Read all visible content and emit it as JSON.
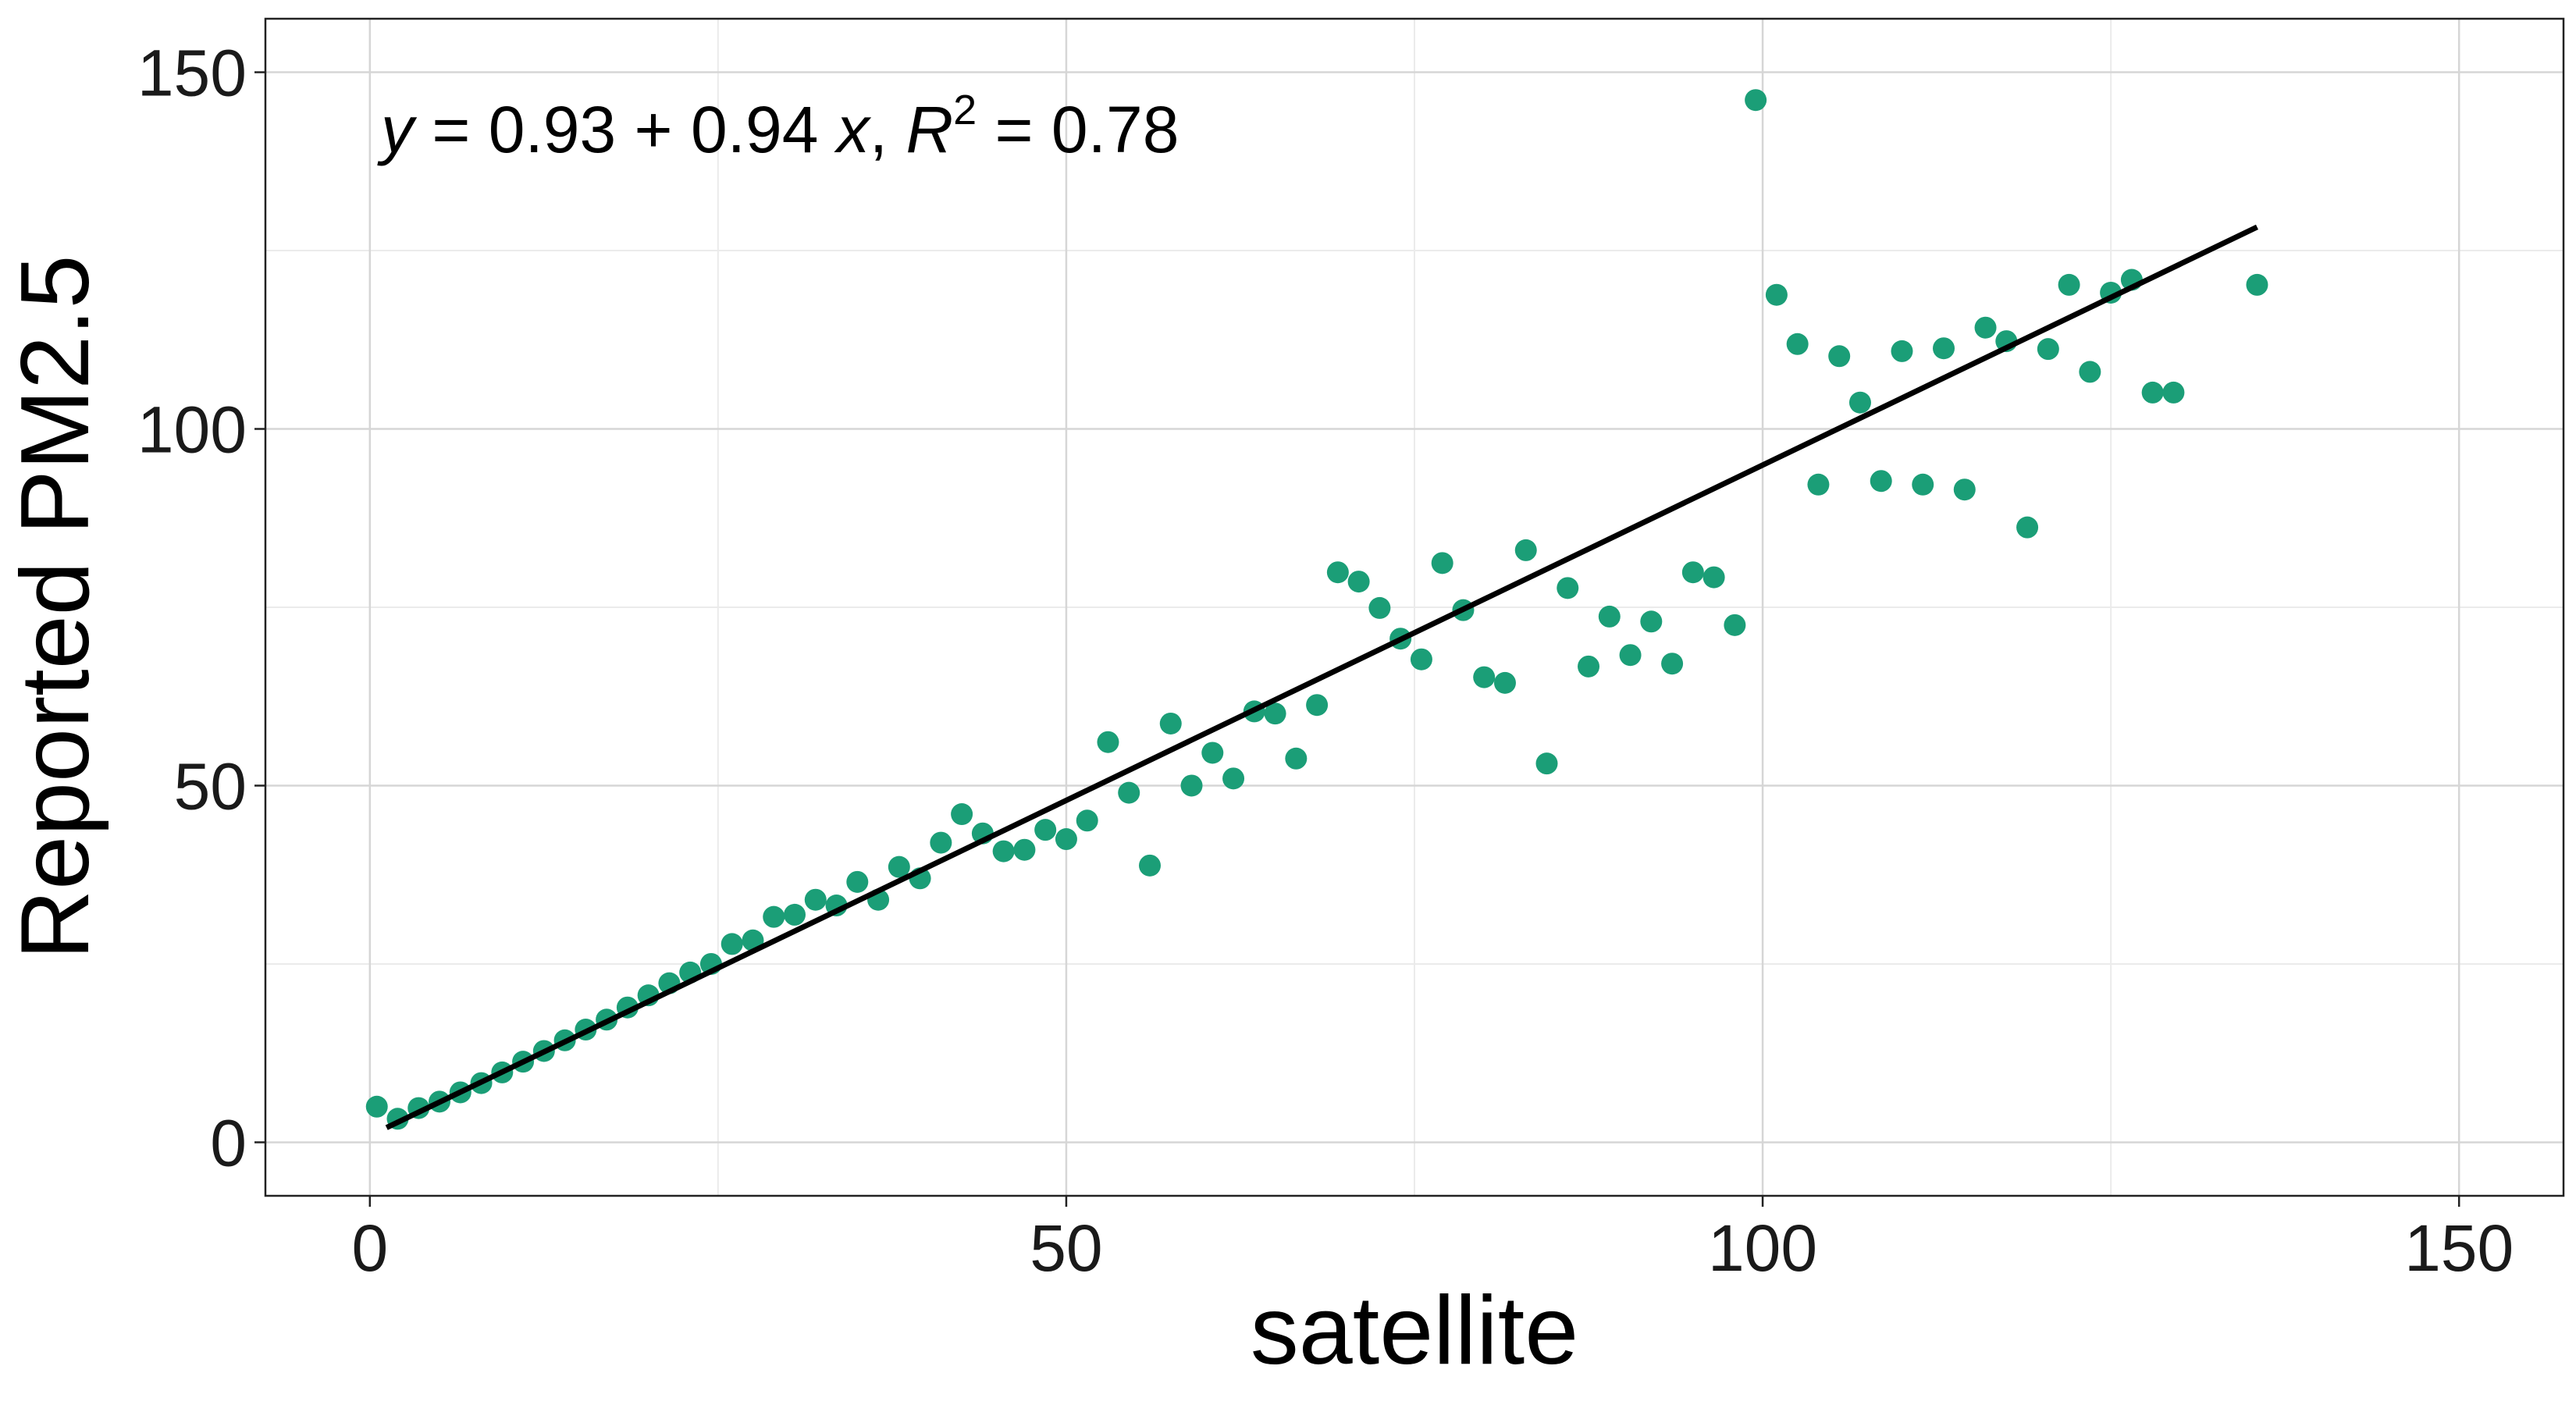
{
  "chart_data": {
    "type": "scatter",
    "xlabel": "satellite",
    "ylabel": "Reported PM2.5",
    "xlim": [
      -7.5,
      157.5
    ],
    "ylim": [
      -7.5,
      157.5
    ],
    "x_ticks": [
      0,
      50,
      100,
      150
    ],
    "y_ticks": [
      0,
      50,
      100,
      150
    ],
    "x_tick_labels": [
      "0",
      "50",
      "100",
      "150"
    ],
    "y_tick_labels": [
      "0",
      "50",
      "100",
      "150"
    ],
    "grid": true,
    "annotation": {
      "y": "y",
      "eq": " = 0.93 + 0.94 ",
      "x": "x",
      "sep": ", ",
      "R": "R",
      "sup": "2",
      "val": " = 0.78"
    },
    "point_color": "#1b9e77",
    "line_color": "#000000",
    "fit": {
      "intercept": 0.93,
      "slope": 0.94,
      "x_range": [
        1.2,
        135.5
      ]
    },
    "points": [
      [
        0.5,
        5
      ],
      [
        2,
        3.3
      ],
      [
        3.5,
        4.8
      ],
      [
        5,
        5.7
      ],
      [
        6.5,
        7
      ],
      [
        8,
        8.3
      ],
      [
        9.5,
        9.8
      ],
      [
        11,
        11.3
      ],
      [
        12.5,
        12.8
      ],
      [
        14,
        14.3
      ],
      [
        15.5,
        15.8
      ],
      [
        17,
        17.2
      ],
      [
        18.5,
        18.9
      ],
      [
        20,
        20.6
      ],
      [
        21.5,
        22.3
      ],
      [
        23,
        23.8
      ],
      [
        24.5,
        25
      ],
      [
        26,
        27.8
      ],
      [
        27.5,
        28.3
      ],
      [
        29,
        31.6
      ],
      [
        30.5,
        31.9
      ],
      [
        32,
        34
      ],
      [
        33.5,
        33.2
      ],
      [
        35,
        36.5
      ],
      [
        36.5,
        34
      ],
      [
        38,
        38.6
      ],
      [
        39.5,
        37
      ],
      [
        41,
        42
      ],
      [
        42.5,
        46
      ],
      [
        44,
        43.3
      ],
      [
        45.5,
        40.8
      ],
      [
        47,
        41
      ],
      [
        48.5,
        43.8
      ],
      [
        50,
        42.5
      ],
      [
        51.5,
        45.1
      ],
      [
        53,
        56.1
      ],
      [
        54.5,
        49
      ],
      [
        56,
        38.8
      ],
      [
        57.5,
        58.7
      ],
      [
        59,
        50
      ],
      [
        60.5,
        54.6
      ],
      [
        62,
        51
      ],
      [
        63.5,
        60.4
      ],
      [
        65,
        60.1
      ],
      [
        66.5,
        53.8
      ],
      [
        68,
        61.3
      ],
      [
        69.5,
        79.9
      ],
      [
        71,
        78.6
      ],
      [
        72.5,
        74.9
      ],
      [
        74,
        70.6
      ],
      [
        75.5,
        67.7
      ],
      [
        77,
        81.2
      ],
      [
        78.5,
        74.6
      ],
      [
        80,
        65.2
      ],
      [
        81.5,
        64.4
      ],
      [
        83,
        83
      ],
      [
        84.5,
        53.1
      ],
      [
        86,
        77.7
      ],
      [
        87.5,
        66.7
      ],
      [
        89,
        73.7
      ],
      [
        90.5,
        68.3
      ],
      [
        92,
        73
      ],
      [
        93.5,
        67.1
      ],
      [
        95,
        79.9
      ],
      [
        96.5,
        79.2
      ],
      [
        98,
        72.5
      ],
      [
        99.5,
        146.1
      ],
      [
        101,
        118.8
      ],
      [
        102.5,
        111.9
      ],
      [
        104,
        92.2
      ],
      [
        105.5,
        110.2
      ],
      [
        107,
        103.7
      ],
      [
        108.5,
        92.7
      ],
      [
        110,
        110.9
      ],
      [
        111.5,
        92.2
      ],
      [
        113,
        111.3
      ],
      [
        114.5,
        91.5
      ],
      [
        116,
        114.2
      ],
      [
        117.5,
        112.3
      ],
      [
        119,
        86.2
      ],
      [
        120.5,
        111.2
      ],
      [
        122,
        120.2
      ],
      [
        123.5,
        108
      ],
      [
        125,
        119.1
      ],
      [
        126.5,
        120.9
      ],
      [
        128,
        105.1
      ],
      [
        129.5,
        105.1
      ],
      [
        135.5,
        120.2
      ]
    ]
  }
}
